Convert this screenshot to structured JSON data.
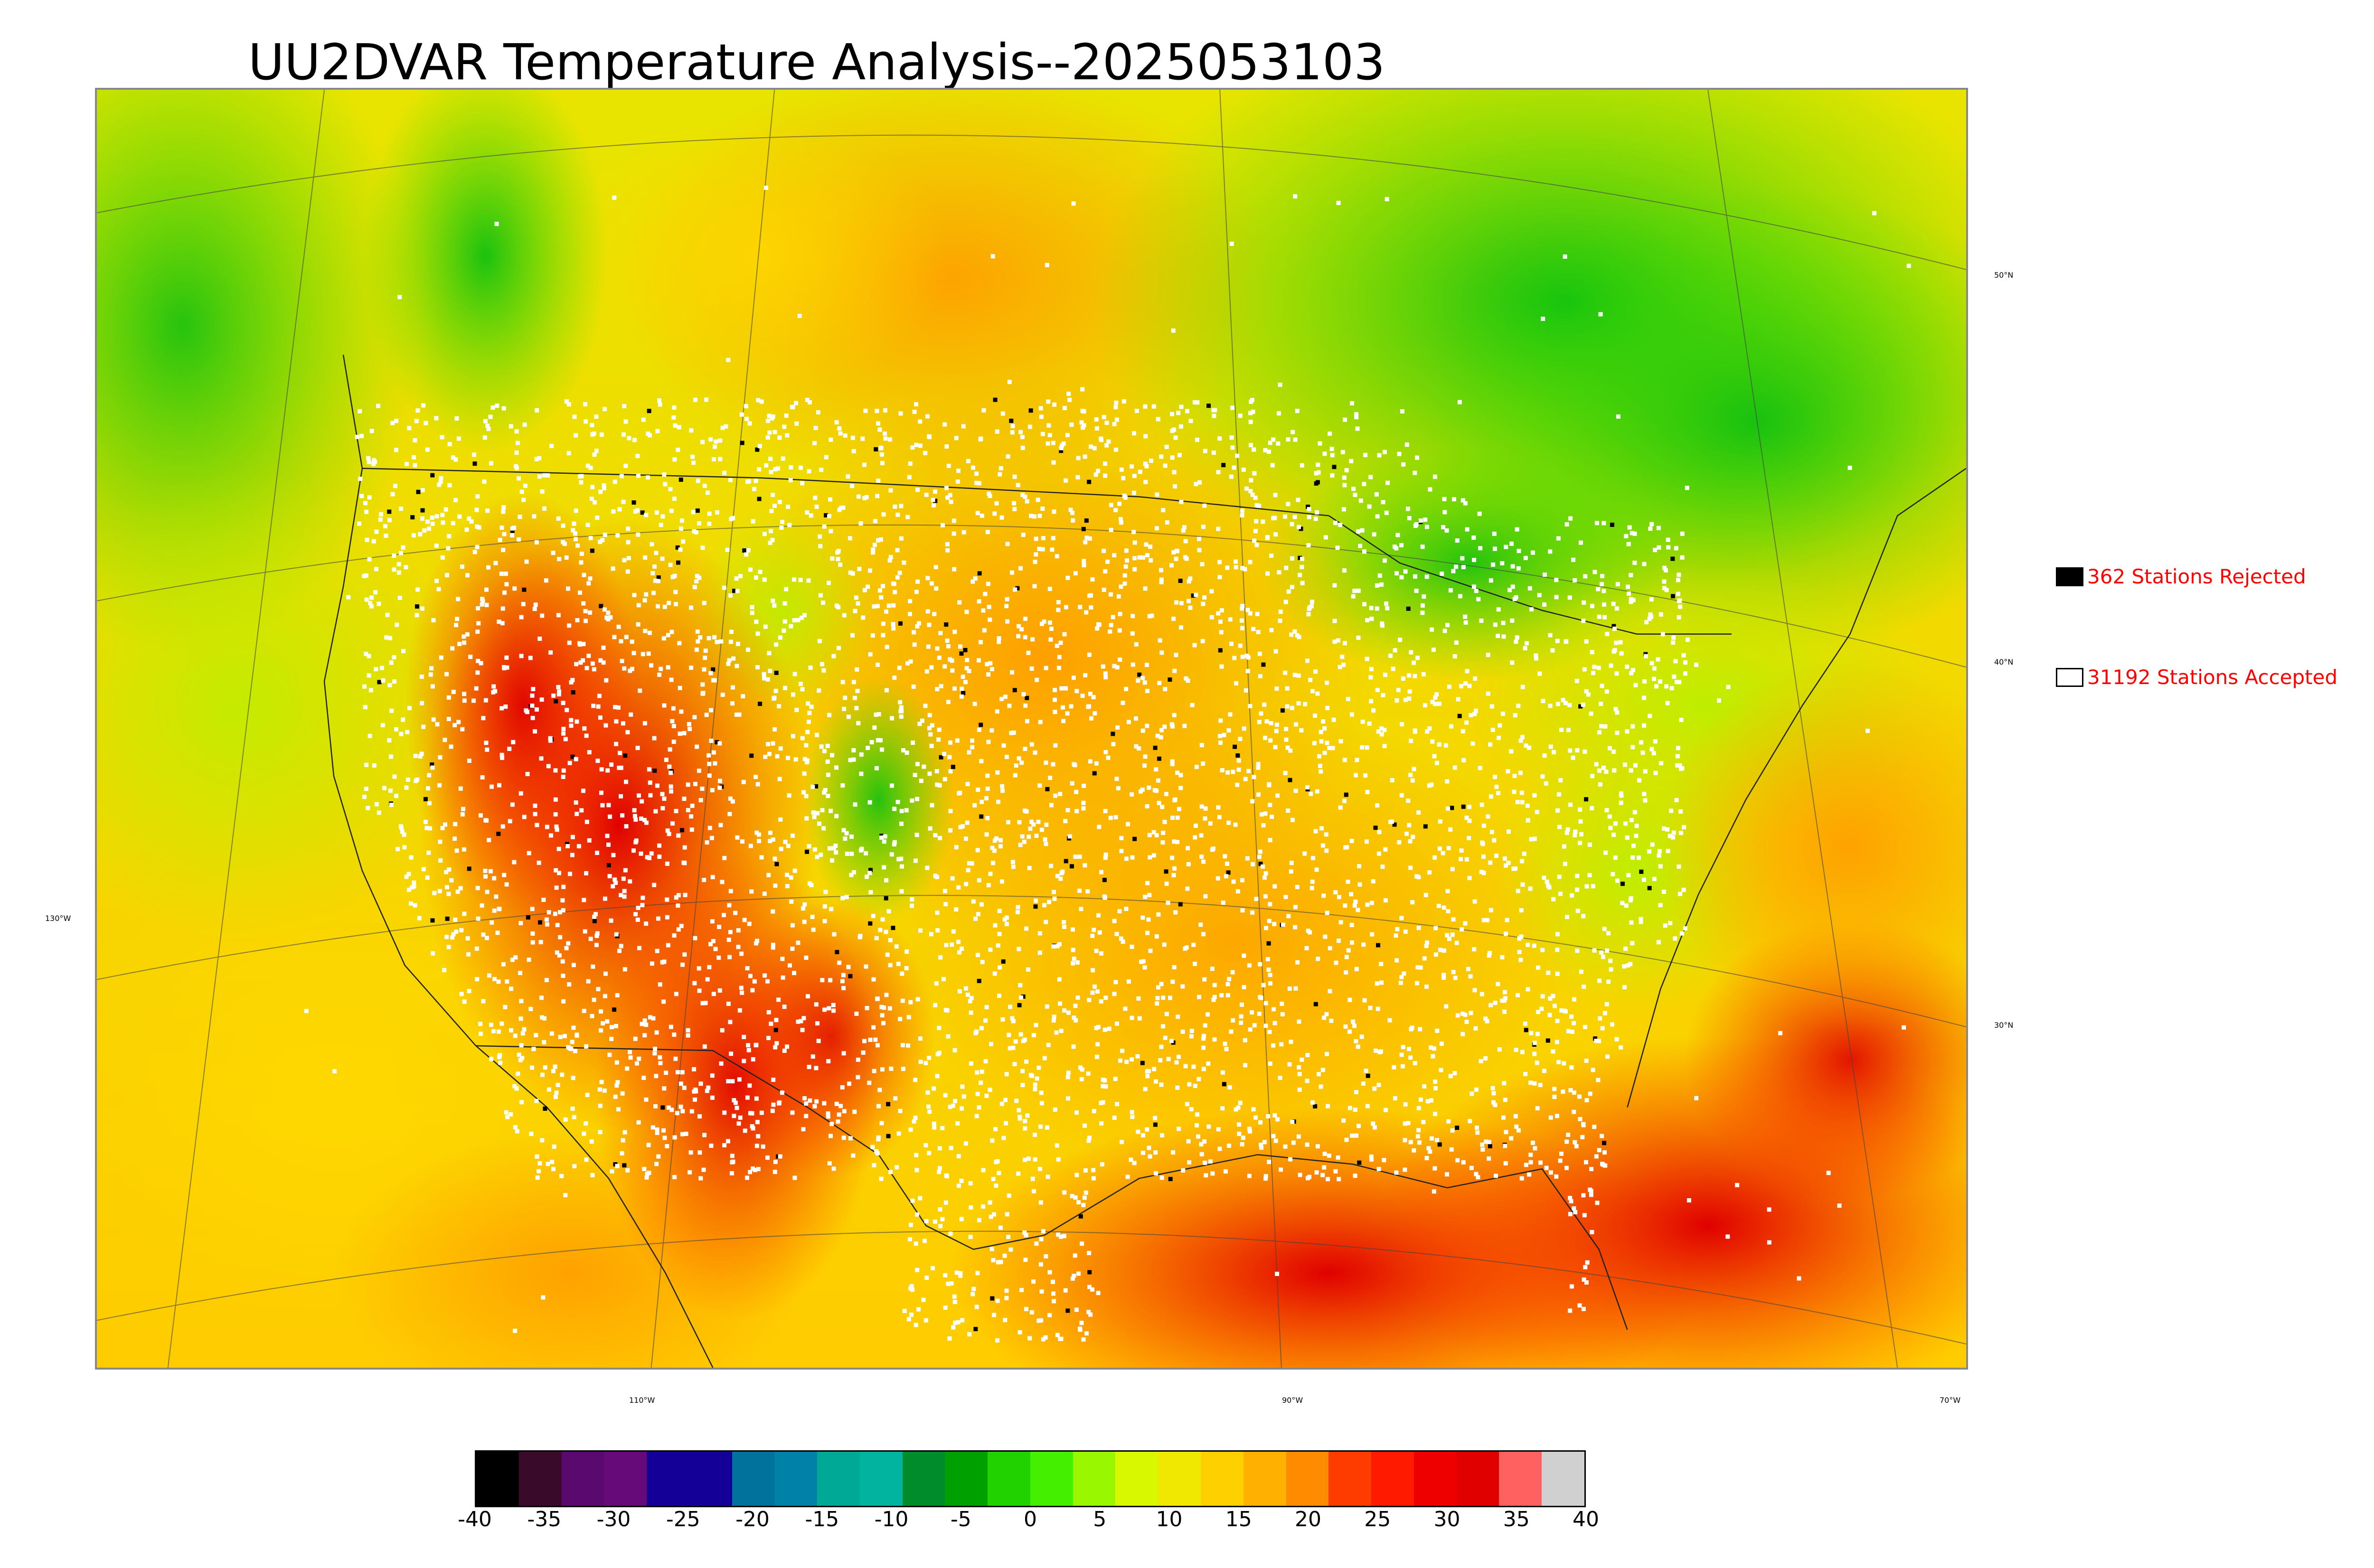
{
  "title": "UU2DVAR Temperature Analysis--2025053103",
  "legend": {
    "rejected": {
      "label": "362 Stations Rejected",
      "swatch_color": "#000000"
    },
    "accepted": {
      "label": "31192 Stations Accepted",
      "swatch_color": "#ffffff"
    }
  },
  "graticule": {
    "lat_labels": [
      "50°N",
      "40°N",
      "30°N"
    ],
    "lon_labels": [
      "130°W",
      "110°W",
      "90°W",
      "70°W"
    ]
  },
  "colorbar": {
    "ticks": [
      "-40",
      "-35",
      "-30",
      "-25",
      "-20",
      "-15",
      "-10",
      "-5",
      "0",
      "5",
      "10",
      "15",
      "20",
      "25",
      "30",
      "35",
      "40"
    ],
    "colors": [
      "#000000",
      "#3a0a2a",
      "#5a0a6e",
      "#660a7a",
      "#140096",
      "#140096",
      "#00729c",
      "#0082a8",
      "#00a896",
      "#00b4a0",
      "#008c2a",
      "#00a000",
      "#22d200",
      "#44f000",
      "#99f800",
      "#d8f800",
      "#f0e800",
      "#ffd000",
      "#ffb000",
      "#ff8c00",
      "#ff3c00",
      "#ff1a00",
      "#ee0000",
      "#e00000",
      "#ff6060",
      "#d0d0d0"
    ]
  },
  "colors": {
    "rejected_station": "#000000",
    "accepted_station": "#ffffff",
    "legend_text": "#ff0000"
  }
}
